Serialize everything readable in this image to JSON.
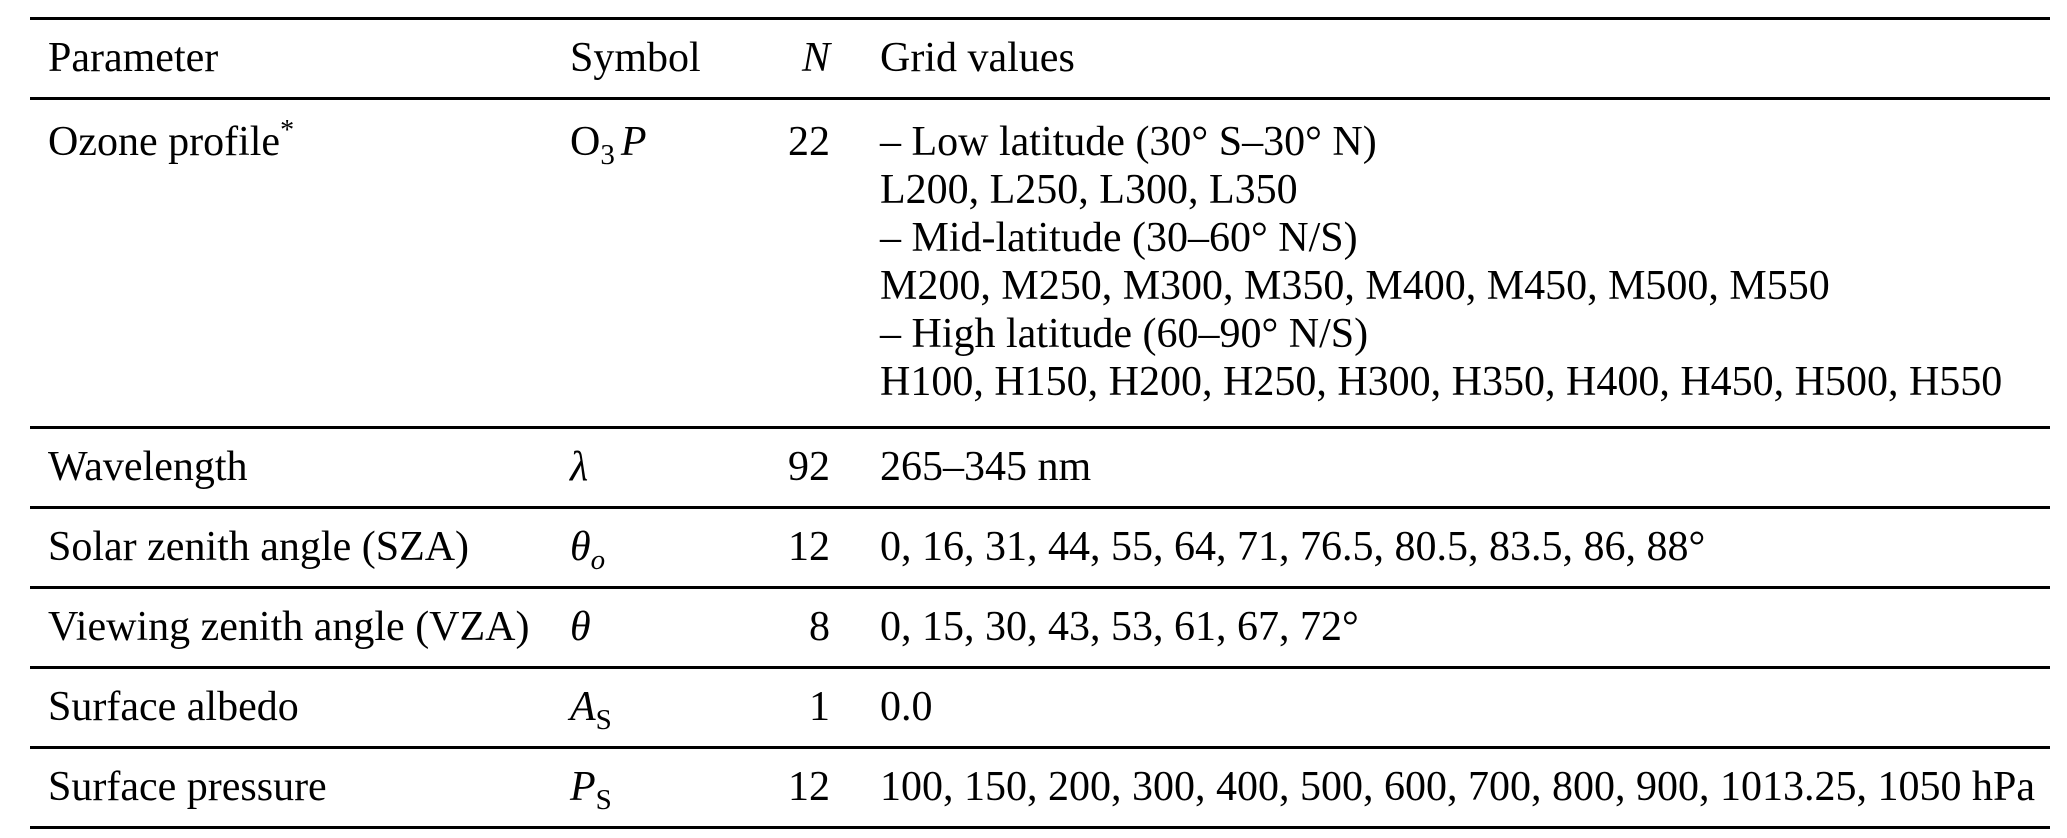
{
  "table": {
    "header": {
      "parameter": "Parameter",
      "symbol": "Symbol",
      "n": "N",
      "grid_values": "Grid values"
    },
    "rows": [
      {
        "parameter": "Ozone profile",
        "parameter_mark": "*",
        "symbol": {
          "main": "O",
          "sub": "3",
          "post": "P"
        },
        "n": "22",
        "grid_values": [
          "– Low latitude (30° S–30° N)",
          "L200, L250, L300, L350",
          "– Mid-latitude (30–60° N/S)",
          "M200, M250, M300, M350, M400, M450, M500, M550",
          "– High latitude (60–90° N/S)",
          "H100, H150, H200, H250, H300, H350, H400, H450, H500, H550"
        ]
      },
      {
        "parameter": "Wavelength",
        "symbol": {
          "main": "λ"
        },
        "n": "92",
        "grid_values": [
          "265–345 nm"
        ]
      },
      {
        "parameter": "Solar zenith angle (SZA)",
        "symbol": {
          "main": "θ",
          "sub": "o"
        },
        "n": "12",
        "grid_values": [
          "0, 16, 31, 44, 55, 64, 71, 76.5, 80.5, 83.5, 86, 88°"
        ]
      },
      {
        "parameter": "Viewing zenith angle (VZA)",
        "symbol": {
          "main": "θ"
        },
        "n": "8",
        "grid_values": [
          "0, 15, 30, 43, 53, 61, 67, 72°"
        ]
      },
      {
        "parameter": "Surface albedo",
        "symbol": {
          "main": "A",
          "sub": "S"
        },
        "n": "1",
        "grid_values": [
          "0.0"
        ]
      },
      {
        "parameter": "Surface pressure",
        "symbol": {
          "main": "P",
          "sub": "S"
        },
        "n": "12",
        "grid_values": [
          "100, 150, 200, 300, 400, 500, 600, 700, 800, 900, 1013.25, 1050 hPa"
        ]
      }
    ]
  }
}
